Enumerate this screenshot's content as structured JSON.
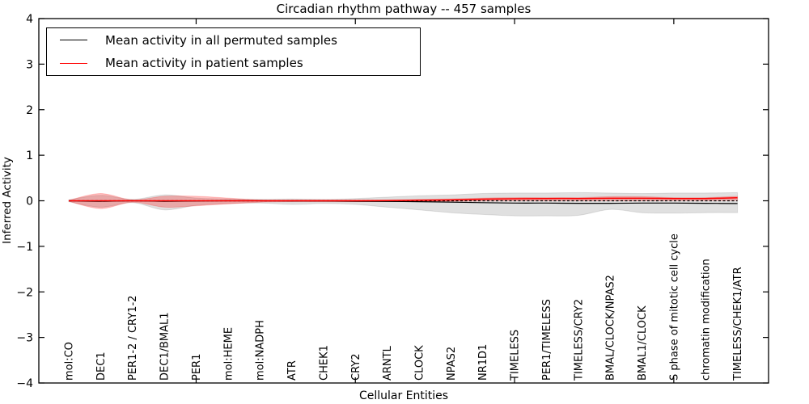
{
  "chart_data": {
    "type": "line",
    "title": "Circadian rhythm pathway -- 457 samples",
    "xlabel": "Cellular Entities",
    "ylabel": "Inferred Activity",
    "ylim": [
      -4,
      4
    ],
    "yticks": [
      -4,
      -3,
      -2,
      -1,
      0,
      1,
      2,
      3,
      4
    ],
    "x_unlabeled_tick_category_numbers": [
      5,
      10,
      15,
      20
    ],
    "grid": false,
    "background": "#ffffff",
    "categories": [
      "mol:CO",
      "DEC1",
      "PER1-2 / CRY1-2",
      "DEC1/BMAL1",
      "PER1",
      "mol:HEME",
      "mol:NADPH",
      "ATR",
      "CHEK1",
      "CRY2",
      "ARNTL",
      "CLOCK",
      "NPAS2",
      "NR1D1",
      "TIMELESS",
      "PER1/TIMELESS",
      "TIMELESS/CRY2",
      "BMAL/CLOCK/NPAS2",
      "BMAL1/CLOCK",
      "S phase of mitotic cell cycle",
      "chromatin modification",
      "TIMELESS/CHEK1/ATR"
    ],
    "series": [
      {
        "name": "Mean activity in all permuted samples",
        "kind": "line",
        "color": "#000000",
        "values": [
          0,
          -0.01,
          0,
          -0.01,
          -0.005,
          0,
          0,
          -0.005,
          -0.005,
          -0.01,
          -0.015,
          -0.02,
          -0.03,
          -0.04,
          -0.05,
          -0.05,
          -0.055,
          -0.055,
          -0.05,
          -0.05,
          -0.055,
          -0.06
        ]
      },
      {
        "name": "Mean activity in patient samples",
        "kind": "line",
        "color": "#ff0000",
        "values": [
          0,
          0,
          0,
          0,
          0,
          0,
          0,
          0,
          0,
          0,
          0.005,
          0.01,
          0.02,
          0.035,
          0.045,
          0.05,
          0.05,
          0.055,
          0.055,
          0.05,
          0.05,
          0.065
        ]
      },
      {
        "name": "permuted samples range band",
        "kind": "band",
        "color": "rgba(0,0,0,0.12)",
        "edge_color": "rgba(0,0,0,0.10)",
        "hi": [
          0.02,
          0.12,
          0.03,
          0.13,
          0.06,
          0.04,
          0.03,
          0.04,
          0.03,
          0.05,
          0.08,
          0.11,
          0.13,
          0.16,
          0.17,
          0.17,
          0.18,
          0.17,
          0.16,
          0.17,
          0.17,
          0.18
        ],
        "lo": [
          -0.02,
          -0.14,
          -0.04,
          -0.2,
          -0.1,
          -0.06,
          -0.05,
          -0.08,
          -0.06,
          -0.08,
          -0.14,
          -0.2,
          -0.26,
          -0.3,
          -0.33,
          -0.33,
          -0.32,
          -0.19,
          -0.26,
          -0.27,
          -0.26,
          -0.26
        ]
      },
      {
        "name": "patient samples range band",
        "kind": "band",
        "color": "rgba(255,0,0,0.25)",
        "edge_color": "rgba(255,0,0,0.18)",
        "hi": [
          0.01,
          0.16,
          0.02,
          0.1,
          0.1,
          0.06,
          0.02,
          0.02,
          0.02,
          0.02,
          0.02,
          0.03,
          0.04,
          0.06,
          0.07,
          0.07,
          0.07,
          0.09,
          0.09,
          0.07,
          0.07,
          0.1
        ],
        "lo": [
          -0.01,
          -0.17,
          -0.03,
          -0.14,
          -0.11,
          -0.07,
          -0.03,
          -0.02,
          -0.02,
          -0.02,
          -0.015,
          -0.01,
          -0.01,
          -0.005,
          0.0,
          0.0,
          0.0,
          0.0,
          0.0,
          0.005,
          0.005,
          0.01
        ]
      }
    ],
    "zero_line": {
      "value": 0,
      "style": "dashed",
      "color": "#000000"
    },
    "legend": {
      "position": "upper left",
      "items": [
        {
          "label": "Mean activity in all permuted samples",
          "color": "#000000"
        },
        {
          "label": "Mean activity in patient samples",
          "color": "#ff0000"
        }
      ]
    }
  }
}
